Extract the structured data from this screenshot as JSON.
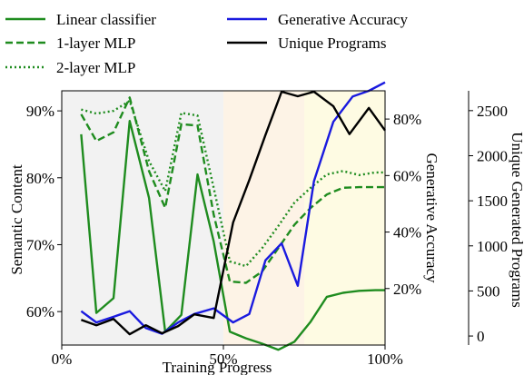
{
  "chart_data": {
    "type": "line",
    "xlabel": "Training Progress",
    "ylabel_left": "Semantic Content",
    "ylabel_right1": "Generative Accuracy",
    "ylabel_right2": "Unique Generated Programs",
    "xlim": [
      0,
      100
    ],
    "ylim_left": [
      55,
      93
    ],
    "ylim_right1": [
      0,
      90
    ],
    "ylim_right2": [
      -100,
      2720
    ],
    "x_ticks": [
      0,
      50,
      100
    ],
    "x_tick_labels": [
      "0%",
      "50%",
      "100%"
    ],
    "y_left_ticks": [
      60,
      70,
      80,
      90
    ],
    "y_left_tick_labels": [
      "60%",
      "70%",
      "80%",
      "90%"
    ],
    "y_right1_ticks": [
      20,
      40,
      60,
      80
    ],
    "y_right1_tick_labels": [
      "20%",
      "40%",
      "60%",
      "80%"
    ],
    "y_right2_ticks": [
      0,
      500,
      1000,
      1500,
      2000,
      2500
    ],
    "y_right2_tick_labels": [
      "0",
      "500",
      "1000",
      "1500",
      "2000",
      "2500"
    ],
    "phases": [
      {
        "from": 0,
        "to": 50,
        "color": "#f2f2f2"
      },
      {
        "from": 50,
        "to": 75,
        "color": "#fdf3e6"
      },
      {
        "from": 75,
        "to": 100,
        "color": "#fefbe3"
      }
    ],
    "legend_position": "top",
    "series": [
      {
        "name": "Linear classifier",
        "axis": "left",
        "color": "#1f8c1f",
        "dash": "solid",
        "x": [
          6,
          10.7,
          16,
          21,
          27,
          32,
          37,
          42,
          47,
          52,
          57,
          62,
          67,
          72,
          77,
          82,
          87,
          92,
          97,
          100
        ],
        "y": [
          86.5,
          59.8,
          62,
          88.5,
          77,
          57,
          59.5,
          80.5,
          70.5,
          57,
          56,
          55.2,
          54.3,
          55.5,
          58.5,
          62.2,
          62.8,
          63.1,
          63.2,
          63.2
        ]
      },
      {
        "name": "1-layer MLP",
        "axis": "left",
        "color": "#1f8c1f",
        "dash": "dashed",
        "x": [
          6,
          10.7,
          16,
          21,
          27,
          32,
          37,
          42,
          47,
          52,
          57,
          62,
          67,
          72,
          77,
          82,
          87,
          92,
          97,
          100
        ],
        "y": [
          89.5,
          85.5,
          86.8,
          92,
          81,
          75.5,
          88,
          87.8,
          74.5,
          64.5,
          64.3,
          66,
          69.5,
          73,
          75.5,
          77.5,
          78.5,
          78.6,
          78.6,
          78.6
        ]
      },
      {
        "name": "2-layer MLP",
        "axis": "left",
        "color": "#1f8c1f",
        "dash": "dotted",
        "x": [
          6,
          10.7,
          16,
          21,
          27,
          32,
          37,
          42,
          47,
          52,
          57,
          62,
          67,
          72,
          77,
          82,
          87,
          92,
          97,
          100
        ],
        "y": [
          90.2,
          89.6,
          90,
          91.5,
          82.5,
          78,
          89.7,
          89.3,
          78.5,
          67.5,
          66.8,
          69.5,
          72.8,
          76.3,
          78.5,
          80.5,
          81,
          80.4,
          80.8,
          80.8
        ]
      },
      {
        "name": "Generative Accuracy",
        "axis": "right1",
        "color": "#1a1adf",
        "dash": "solid",
        "x": [
          6,
          10.7,
          16,
          21,
          26,
          31,
          36,
          41,
          47,
          53,
          58,
          63,
          68,
          73,
          78,
          84,
          90,
          95,
          100
        ],
        "y": [
          12,
          8,
          10,
          12,
          6,
          4,
          8,
          11,
          13,
          8,
          11,
          30,
          36,
          21,
          58,
          79,
          88,
          90,
          93
        ]
      },
      {
        "name": "Unique Programs",
        "axis": "right2",
        "color": "#000000",
        "dash": "solid",
        "x": [
          6,
          10.7,
          16,
          21,
          26,
          31,
          36,
          41,
          47,
          53,
          58,
          63,
          68,
          73,
          78,
          84,
          89,
          95,
          100
        ],
        "y": [
          180,
          120,
          190,
          20,
          120,
          30,
          110,
          240,
          200,
          1260,
          1730,
          2230,
          2710,
          2660,
          2710,
          2550,
          2240,
          2530,
          2280
        ]
      }
    ]
  }
}
